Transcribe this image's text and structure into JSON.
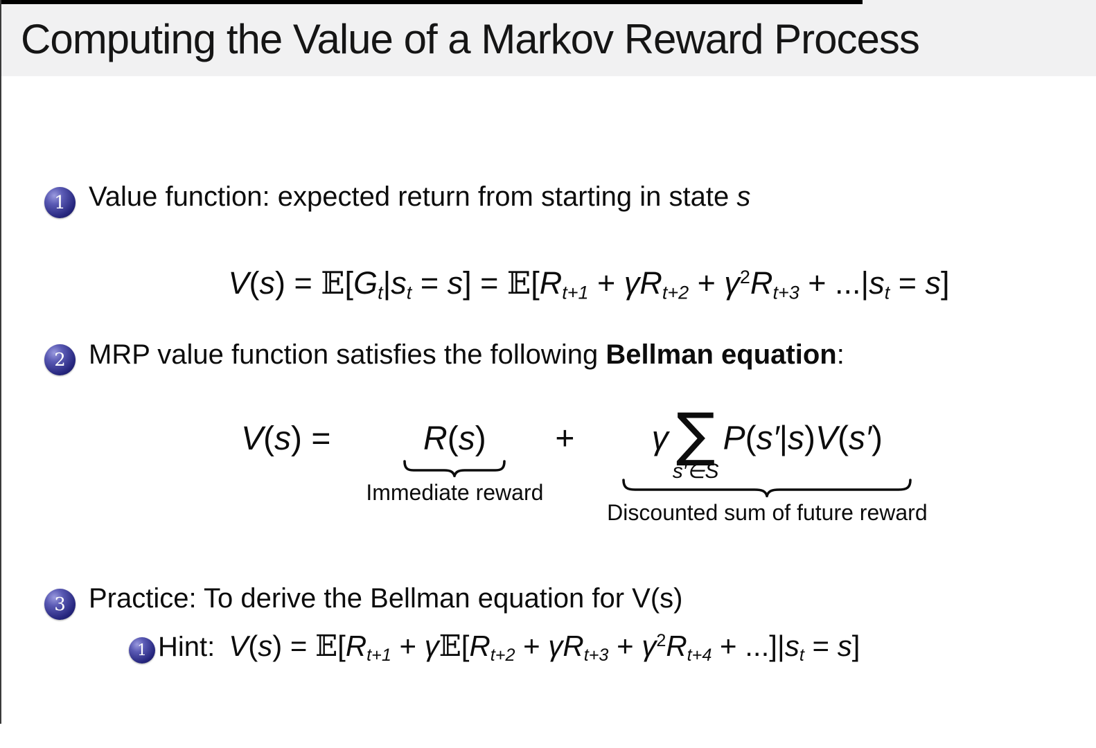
{
  "page": {
    "bg": "#ffffff",
    "header_bg": "#f1f1f2",
    "ball_color": "#26267e",
    "text_color": "#0c0c0c"
  },
  "header": {
    "title": "Computing the Value of a Markov Reward Process"
  },
  "items": {
    "item1": {
      "number": "1",
      "text": "Value function: expected return from starting in state ",
      "state_var": "s"
    },
    "item2": {
      "number": "2",
      "pre": "MRP value function satisfies the following ",
      "bold": "Bellman equation",
      "post": ":"
    },
    "item3": {
      "number": "3",
      "text": "Practice: To derive the Bellman equation for V(s)"
    },
    "hint": {
      "number": "1",
      "label": "Hint:"
    }
  },
  "bellman": {
    "label1": "Immediate reward",
    "label2": "Discounted sum of future reward"
  },
  "math": {
    "value_function": [
      {
        "k": "v",
        "t": "V"
      },
      {
        "k": "r",
        "t": "("
      },
      {
        "k": "v",
        "t": "s"
      },
      {
        "k": "r",
        "t": ") = "
      },
      {
        "k": "bb",
        "t": "𝔼"
      },
      {
        "k": "r",
        "t": "["
      },
      {
        "k": "v",
        "t": "G"
      },
      {
        "k": "sub",
        "t": "t"
      },
      {
        "k": "r",
        "t": "|"
      },
      {
        "k": "v",
        "t": "s"
      },
      {
        "k": "sub",
        "t": "t"
      },
      {
        "k": "r",
        "t": " = "
      },
      {
        "k": "v",
        "t": "s"
      },
      {
        "k": "r",
        "t": "] = "
      },
      {
        "k": "bb",
        "t": "𝔼"
      },
      {
        "k": "r",
        "t": "["
      },
      {
        "k": "v",
        "t": "R"
      },
      {
        "k": "sub",
        "t": "t+1"
      },
      {
        "k": "r",
        "t": " + "
      },
      {
        "k": "v",
        "t": "γ"
      },
      {
        "k": "v",
        "t": "R"
      },
      {
        "k": "sub",
        "t": "t+2"
      },
      {
        "k": "r",
        "t": " + "
      },
      {
        "k": "v",
        "t": "γ"
      },
      {
        "k": "sup",
        "t": "2"
      },
      {
        "k": "v",
        "t": "R"
      },
      {
        "k": "sub",
        "t": "t+3"
      },
      {
        "k": "r",
        "t": " + ...|"
      },
      {
        "k": "v",
        "t": "s"
      },
      {
        "k": "sub",
        "t": "t"
      },
      {
        "k": "r",
        "t": " = "
      },
      {
        "k": "v",
        "t": "s"
      },
      {
        "k": "r",
        "t": "]"
      }
    ],
    "bellman_lhs": [
      {
        "k": "v",
        "t": "V"
      },
      {
        "k": "r",
        "t": "("
      },
      {
        "k": "v",
        "t": "s"
      },
      {
        "k": "r",
        "t": ") ="
      }
    ],
    "bellman_term1": [
      {
        "k": "v",
        "t": "R"
      },
      {
        "k": "r",
        "t": "("
      },
      {
        "k": "v",
        "t": "s"
      },
      {
        "k": "r",
        "t": ")"
      }
    ],
    "bellman_plus": [
      {
        "k": "r",
        "t": "+"
      }
    ],
    "bellman_term2": [
      {
        "k": "v",
        "t": "γ"
      },
      {
        "k": "sum",
        "t": "∑",
        "under": "s′∈S"
      },
      {
        "k": "v",
        "t": "P"
      },
      {
        "k": "r",
        "t": "("
      },
      {
        "k": "v",
        "t": "s′"
      },
      {
        "k": "r",
        "t": "|"
      },
      {
        "k": "v",
        "t": "s"
      },
      {
        "k": "r",
        "t": ")"
      },
      {
        "k": "v",
        "t": "V"
      },
      {
        "k": "r",
        "t": "("
      },
      {
        "k": "v",
        "t": "s′"
      },
      {
        "k": "r",
        "t": ")"
      }
    ],
    "hint_formula": [
      {
        "k": "v",
        "t": "V"
      },
      {
        "k": "r",
        "t": "("
      },
      {
        "k": "v",
        "t": "s"
      },
      {
        "k": "r",
        "t": ") = "
      },
      {
        "k": "bb",
        "t": "𝔼"
      },
      {
        "k": "r",
        "t": "["
      },
      {
        "k": "v",
        "t": "R"
      },
      {
        "k": "sub",
        "t": "t+1"
      },
      {
        "k": "r",
        "t": " + "
      },
      {
        "k": "v",
        "t": "γ"
      },
      {
        "k": "bb",
        "t": "𝔼"
      },
      {
        "k": "r",
        "t": "["
      },
      {
        "k": "v",
        "t": "R"
      },
      {
        "k": "sub",
        "t": "t+2"
      },
      {
        "k": "r",
        "t": " + "
      },
      {
        "k": "v",
        "t": "γ"
      },
      {
        "k": "v",
        "t": "R"
      },
      {
        "k": "sub",
        "t": "t+3"
      },
      {
        "k": "r",
        "t": " + "
      },
      {
        "k": "v",
        "t": "γ"
      },
      {
        "k": "sup",
        "t": "2"
      },
      {
        "k": "v",
        "t": "R"
      },
      {
        "k": "sub",
        "t": "t+4"
      },
      {
        "k": "r",
        "t": " + ...]|"
      },
      {
        "k": "v",
        "t": "s"
      },
      {
        "k": "sub",
        "t": "t"
      },
      {
        "k": "r",
        "t": " = "
      },
      {
        "k": "v",
        "t": "s"
      },
      {
        "k": "r",
        "t": "]"
      }
    ]
  }
}
